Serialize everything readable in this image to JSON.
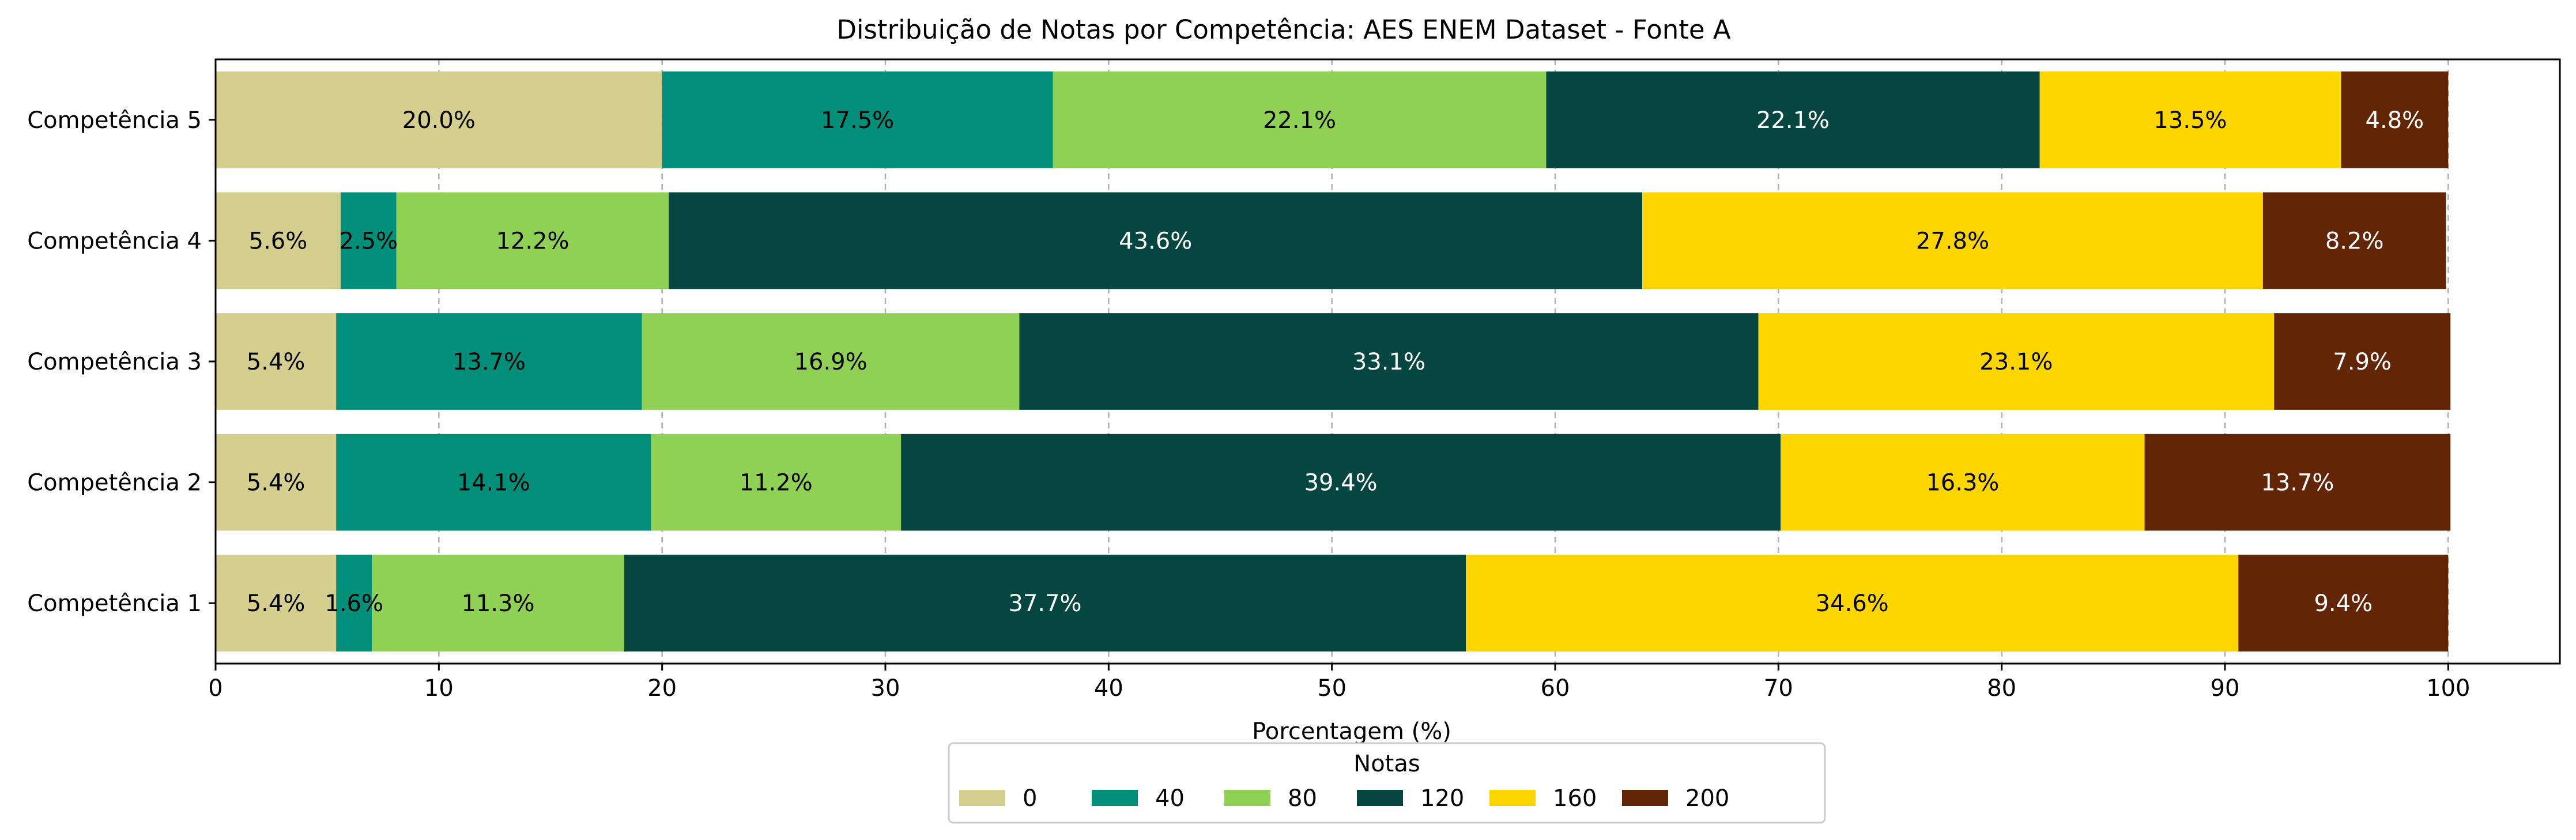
{
  "chart_data": {
    "type": "bar",
    "orientation": "horizontal",
    "stacked": true,
    "title": "Distribuição de Notas por Competência: AES ENEM Dataset - Fonte A",
    "xlabel": "Porcentagem (%)",
    "ylabel": "",
    "xlim": [
      0,
      105
    ],
    "xticks": [
      0,
      10,
      20,
      30,
      40,
      50,
      60,
      70,
      80,
      90,
      100
    ],
    "grid": {
      "x": true,
      "style": "dashed"
    },
    "categories": [
      "Competência 5",
      "Competência 4",
      "Competência 3",
      "Competência 2",
      "Competência 1"
    ],
    "legend": {
      "title": "Notas",
      "placement": "bottom-center"
    },
    "series": [
      {
        "name": "0",
        "color": "#d4cf8e",
        "label_color": "#000000",
        "values": [
          20.0,
          5.6,
          5.4,
          5.4,
          5.4
        ],
        "labels": [
          "20.0%",
          "5.6%",
          "5.4%",
          "5.4%",
          "5.4%"
        ]
      },
      {
        "name": "40",
        "color": "#018f7a",
        "label_color": "#000000",
        "values": [
          17.5,
          2.5,
          13.7,
          14.1,
          1.6
        ],
        "labels": [
          "17.5%",
          "2.5%",
          "13.7%",
          "14.1%",
          "1.6%"
        ]
      },
      {
        "name": "80",
        "color": "#8fd155",
        "label_color": "#000000",
        "values": [
          22.1,
          12.2,
          16.9,
          11.2,
          11.3
        ],
        "labels": [
          "22.1%",
          "12.2%",
          "16.9%",
          "11.2%",
          "11.3%"
        ]
      },
      {
        "name": "120",
        "color": "#054640",
        "label_color": "#ffffff",
        "values": [
          22.1,
          43.6,
          33.1,
          39.4,
          37.7
        ],
        "labels": [
          "22.1%",
          "43.6%",
          "33.1%",
          "39.4%",
          "37.7%"
        ]
      },
      {
        "name": "160",
        "color": "#fdd600",
        "label_color": "#000000",
        "values": [
          13.5,
          27.8,
          23.1,
          16.3,
          34.6
        ],
        "labels": [
          "13.5%",
          "27.8%",
          "23.1%",
          "16.3%",
          "34.6%"
        ]
      },
      {
        "name": "200",
        "color": "#622505",
        "label_color": "#ffffff",
        "values": [
          4.8,
          8.2,
          7.9,
          13.7,
          9.4
        ],
        "labels": [
          "4.8%",
          "8.2%",
          "7.9%",
          "13.7%",
          "9.4%"
        ]
      }
    ]
  }
}
